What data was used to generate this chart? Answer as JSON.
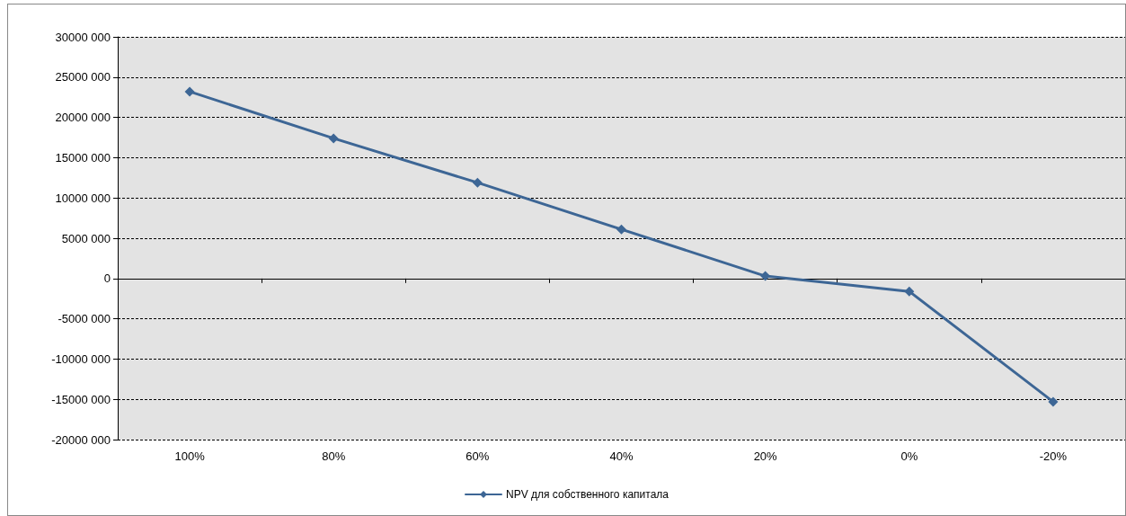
{
  "chart_data": {
    "type": "line",
    "categories": [
      "100%",
      "80%",
      "60%",
      "40%",
      "20%",
      "0%",
      "-20%"
    ],
    "series": [
      {
        "name": "NPV для собственного капитала",
        "color": "#3d6695",
        "values": [
          23200000,
          17400000,
          11900000,
          6100000,
          300000,
          -1600000,
          -15300000
        ]
      }
    ],
    "ylim": [
      -20000000,
      30000000
    ],
    "yticks": [
      {
        "value": -20000000,
        "label": "-20000 000"
      },
      {
        "value": -15000000,
        "label": "-15000 000"
      },
      {
        "value": -10000000,
        "label": "-10000 000"
      },
      {
        "value": -5000000,
        "label": "-5000 000"
      },
      {
        "value": 0,
        "label": "0"
      },
      {
        "value": 5000000,
        "label": "5000 000"
      },
      {
        "value": 10000000,
        "label": "10000 000"
      },
      {
        "value": 15000000,
        "label": "15000 000"
      },
      {
        "value": 20000000,
        "label": "20000 000"
      },
      {
        "value": 25000000,
        "label": "25000 000"
      },
      {
        "value": 30000000,
        "label": "30000 000"
      }
    ],
    "grid": "y",
    "legend": "bottom",
    "marker": "diamond",
    "line_style": "solid"
  }
}
